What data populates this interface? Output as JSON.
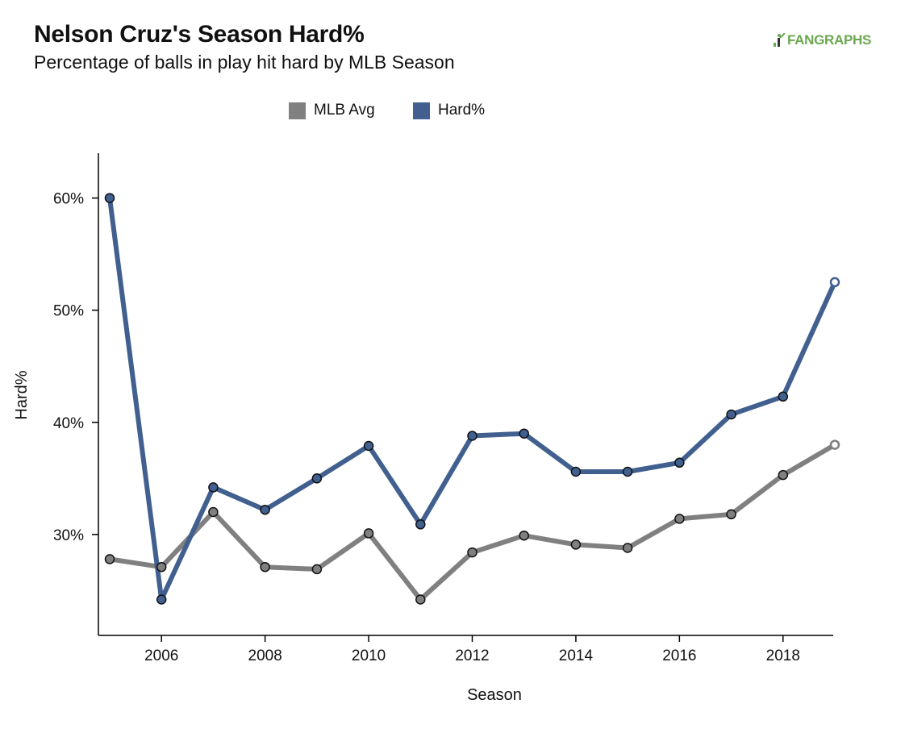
{
  "header": {
    "title": "Nelson Cruz's Season Hard%",
    "subtitle": "Percentage of balls in play hit hard by MLB Season",
    "logo_text": "FANGRAPHS"
  },
  "colors": {
    "mlb_avg": "#808080",
    "hard": "#41608f",
    "logo": "#6aa84f"
  },
  "chart_data": {
    "type": "line",
    "xlabel": "Season",
    "ylabel": "Hard%",
    "xlim": [
      2005,
      2019
    ],
    "ylim": [
      21,
      64
    ],
    "x_ticks": [
      2006,
      2008,
      2010,
      2012,
      2014,
      2016,
      2018
    ],
    "y_ticks": [
      30,
      40,
      50,
      60
    ],
    "y_tick_format": "%",
    "legend_position": "top-center",
    "grid": false,
    "x": [
      2005,
      2006,
      2007,
      2008,
      2009,
      2010,
      2011,
      2012,
      2013,
      2014,
      2015,
      2016,
      2017,
      2018,
      2019
    ],
    "series": [
      {
        "name": "MLB Avg",
        "color": "#808080",
        "values": [
          27.8,
          27.1,
          32.0,
          27.1,
          26.9,
          30.1,
          24.2,
          28.4,
          29.9,
          29.1,
          28.8,
          31.4,
          31.8,
          35.3,
          38.0
        ],
        "last_point_hollow": true
      },
      {
        "name": "Hard%",
        "color": "#41608f",
        "values": [
          60.0,
          24.2,
          34.2,
          32.2,
          35.0,
          37.9,
          30.9,
          38.8,
          39.0,
          35.6,
          35.6,
          36.4,
          40.7,
          42.3,
          52.5
        ],
        "last_point_hollow": true
      }
    ]
  }
}
